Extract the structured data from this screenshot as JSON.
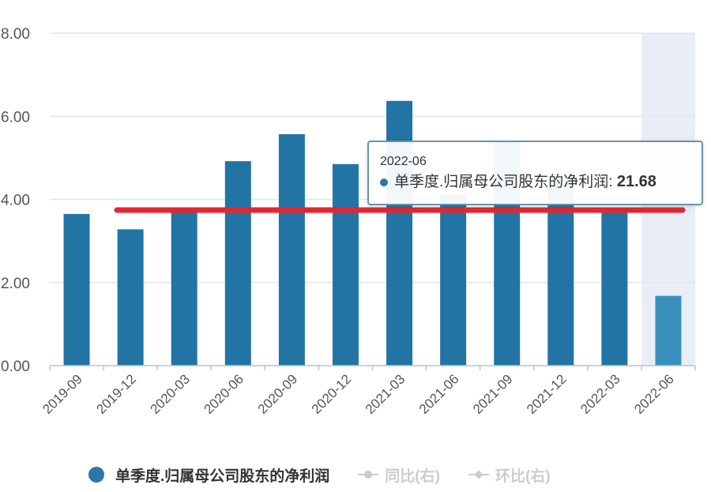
{
  "chart_data": {
    "type": "bar",
    "categories": [
      "2019-09",
      "2019-12",
      "2020-03",
      "2020-06",
      "2020-09",
      "2020-12",
      "2021-03",
      "2021-06",
      "2021-09",
      "2021-12",
      "2022-03",
      "2022-06"
    ],
    "series": [
      {
        "name": "单季度.归属母公司股东的净利润",
        "values": [
          23.65,
          23.28,
          23.8,
          24.92,
          25.57,
          24.85,
          26.37,
          24.1,
          25.4,
          24.5,
          23.7,
          21.68
        ]
      }
    ],
    "y_tick_labels": [
      "0.00",
      "2.00",
      "4.00",
      "6.00",
      "8.00"
    ],
    "ylim": [
      20,
      28
    ],
    "grid": true,
    "highlighted_category": "2022-06",
    "colors": {
      "bar": "#2274a5",
      "highlight_bar": "#3a8fbf",
      "highlight_band": "#e9eef6",
      "annotation_line": "#e3262f"
    }
  },
  "tooltip": {
    "date": "2022-06",
    "series_label": "单季度.归属母公司股东的净利润:",
    "value": "21.68"
  },
  "legend": {
    "items": [
      {
        "label": "单季度.归属母公司股东的净利润",
        "active": true
      },
      {
        "label": "同比(右)",
        "active": false
      },
      {
        "label": "环比(右)",
        "active": false
      }
    ]
  }
}
